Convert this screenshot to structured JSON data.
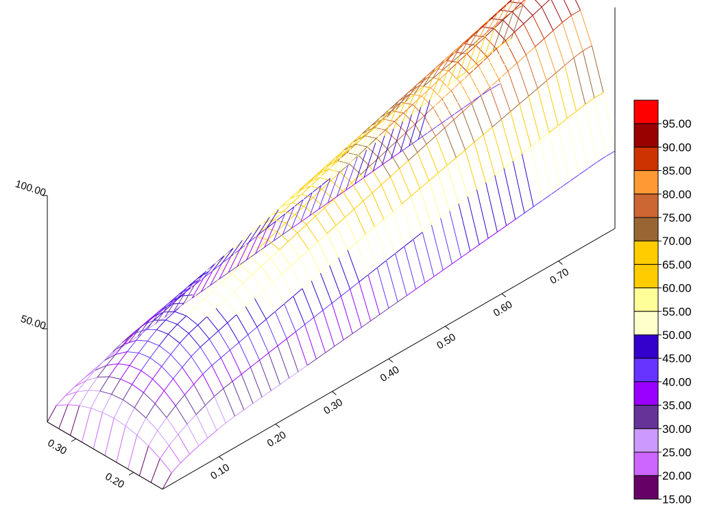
{
  "chart_data": {
    "type": "surface3d",
    "x_axis": {
      "ticks": [
        "0.10",
        "0.20",
        "0.30",
        "0.40",
        "0.50",
        "0.60",
        "0.70"
      ],
      "range": [
        0.0,
        0.8
      ]
    },
    "y_axis": {
      "ticks": [
        "0.20",
        "0.30"
      ],
      "range": [
        0.15,
        0.35
      ]
    },
    "z_axis": {
      "ticks": [
        "50.00",
        "100.00"
      ],
      "range": [
        15,
        100
      ]
    },
    "surface_z_range": [
      15,
      100
    ],
    "color_scale": [
      {
        "label": "15.00",
        "color": "#660066"
      },
      {
        "label": "20.00",
        "color": "#cc66ff"
      },
      {
        "label": "25.00",
        "color": "#cc99ff"
      },
      {
        "label": "30.00",
        "color": "#663399"
      },
      {
        "label": "35.00",
        "color": "#9900ff"
      },
      {
        "label": "40.00",
        "color": "#6633ff"
      },
      {
        "label": "45.00",
        "color": "#3300cc"
      },
      {
        "label": "50.00",
        "color": "#ffffcc"
      },
      {
        "label": "55.00",
        "color": "#ffff99"
      },
      {
        "label": "60.00",
        "color": "#ffcc00"
      },
      {
        "label": "65.00",
        "color": "#ffcc00"
      },
      {
        "label": "70.00",
        "color": "#996633"
      },
      {
        "label": "75.00",
        "color": "#cc6633"
      },
      {
        "label": "80.00",
        "color": "#ff9933"
      },
      {
        "label": "85.00",
        "color": "#cc3300"
      },
      {
        "label": "90.00",
        "color": "#990000"
      },
      {
        "label": "95.00",
        "color": "#ff0000"
      }
    ],
    "legend_position": "right"
  }
}
